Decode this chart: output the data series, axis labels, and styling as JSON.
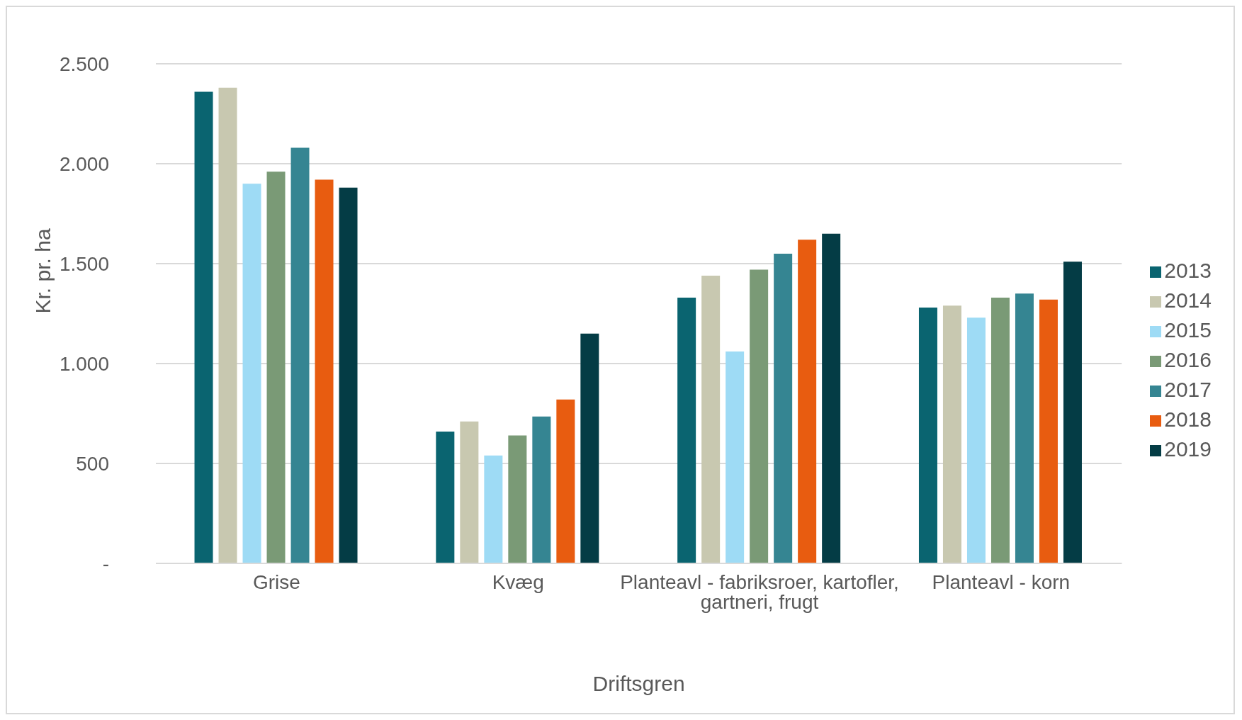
{
  "chart_data": {
    "type": "bar",
    "xlabel": "Driftsgren",
    "ylabel": "Kr. pr. ha",
    "categories": [
      "Grise",
      "Kvæg",
      "Planteavl - fabriksroer, kartofler, gartneri, frugt",
      "Planteavl - korn"
    ],
    "series": [
      {
        "name": "2013",
        "color": "#0a6470",
        "values": [
          2360,
          660,
          1330,
          1280
        ]
      },
      {
        "name": "2014",
        "color": "#c8c8b0",
        "values": [
          2380,
          710,
          1440,
          1290
        ]
      },
      {
        "name": "2015",
        "color": "#9edbf5",
        "values": [
          1900,
          540,
          1060,
          1230
        ]
      },
      {
        "name": "2016",
        "color": "#7a9a76",
        "values": [
          1960,
          640,
          1470,
          1330
        ]
      },
      {
        "name": "2017",
        "color": "#358592",
        "values": [
          2080,
          735,
          1550,
          1350
        ]
      },
      {
        "name": "2018",
        "color": "#e85c10",
        "values": [
          1920,
          820,
          1620,
          1320
        ]
      },
      {
        "name": "2019",
        "color": "#043c45",
        "values": [
          1880,
          1150,
          1650,
          1510
        ]
      }
    ],
    "ylim": [
      0,
      2500
    ],
    "yticks": [
      {
        "value": 0,
        "label": "-"
      },
      {
        "value": 500,
        "label": "500"
      },
      {
        "value": 1000,
        "label": "1.000"
      },
      {
        "value": 1500,
        "label": "1.500"
      },
      {
        "value": 2000,
        "label": "2.000"
      },
      {
        "value": 2500,
        "label": "2.500"
      }
    ],
    "grid": "y",
    "legend": "right"
  }
}
